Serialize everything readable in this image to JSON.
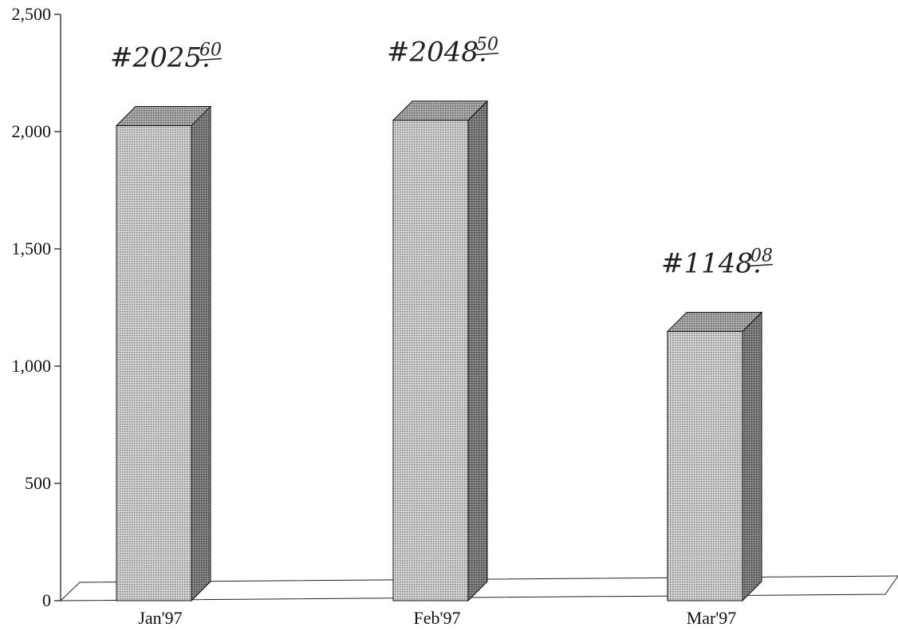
{
  "chart_data": {
    "type": "bar",
    "style": "3d",
    "categories": [
      "Jan'97",
      "Feb'97",
      "Mar'97"
    ],
    "values": [
      2025.6,
      2048.5,
      1148.08
    ],
    "ylim": [
      0,
      2500
    ],
    "yticks": [
      0,
      500,
      1000,
      1500,
      2000,
      2500
    ],
    "ytick_labels": [
      "0",
      "500",
      "1,000",
      "1,500",
      "2,000",
      "2,500"
    ],
    "title": "",
    "xlabel": "",
    "ylabel": "",
    "grid": false,
    "annotations": [
      {
        "dollars": "#2025.",
        "cents": "60"
      },
      {
        "dollars": "#2048.",
        "cents": "50"
      },
      {
        "dollars": "#1148.",
        "cents": "08"
      }
    ],
    "colors": {
      "bar_front": "#c9c9c9",
      "bar_side": "#777777",
      "bar_top": "#a0a0a0",
      "ink": "#111111"
    }
  }
}
